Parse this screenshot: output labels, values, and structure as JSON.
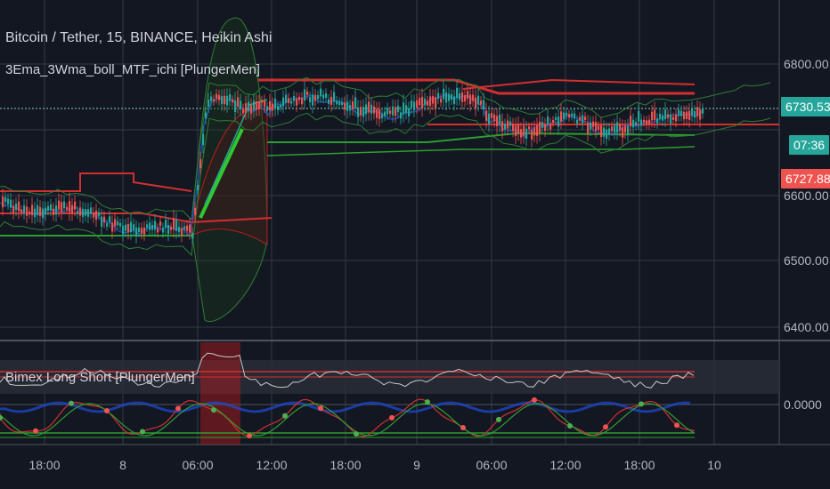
{
  "header": {
    "symbol_line": "Bitcoin / Tether, 15, BINANCE, Heikin Ashi",
    "indicator_1": "3Ema_3Wma_boll_MTF_ichi [PlungerMen]",
    "indicator_2": "Bimex Long Short  [PlungerMen]"
  },
  "price_axis": {
    "labels": [
      "6800.00",
      "6600.00",
      "6500.00",
      "6400.00"
    ]
  },
  "price_tags": {
    "last_price": "6730.53",
    "countdown": "07:36",
    "red_level": "6727.88",
    "last_price_color": "#26a69a",
    "countdown_color": "#26a69a",
    "red_level_color": "#ef5350"
  },
  "oscillator_axis": {
    "label": "0.0000"
  },
  "time_axis": {
    "labels": [
      "18:00",
      "8",
      "06:00",
      "12:00",
      "18:00",
      "9",
      "06:00",
      "12:00",
      "18:00",
      "10"
    ]
  },
  "colors": {
    "background": "#131722",
    "grid": "#363a45",
    "bull": "#26a69a",
    "bear": "#ef5350",
    "ema_green": "#2e9e2e",
    "red_line": "#d32f2f"
  }
}
